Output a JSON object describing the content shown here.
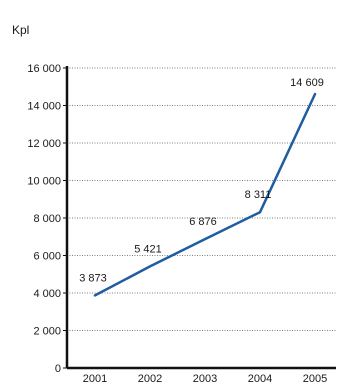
{
  "chart_data": {
    "type": "line",
    "unit_label": "Kpl",
    "categories": [
      "2001",
      "2002",
      "2003",
      "2004",
      "2005"
    ],
    "values": [
      3873,
      5421,
      6876,
      8311,
      14609
    ],
    "data_labels": [
      "3 873",
      "5 421",
      "6 876",
      "8 311",
      "14 609"
    ],
    "y_ticks": [
      {
        "value": 0,
        "label": "0"
      },
      {
        "value": 2000,
        "label": "2 000"
      },
      {
        "value": 4000,
        "label": "4 000"
      },
      {
        "value": 6000,
        "label": "6 000"
      },
      {
        "value": 8000,
        "label": "8 000"
      },
      {
        "value": 10000,
        "label": "10 000"
      },
      {
        "value": 12000,
        "label": "12 000"
      },
      {
        "value": 14000,
        "label": "14 000"
      },
      {
        "value": 16000,
        "label": "16 000"
      }
    ],
    "ylim": [
      0,
      16000
    ],
    "grid": "horizontal-dotted",
    "line_color": "#1f5d9e",
    "axis_color": "#111111",
    "grid_color": "#555555"
  }
}
